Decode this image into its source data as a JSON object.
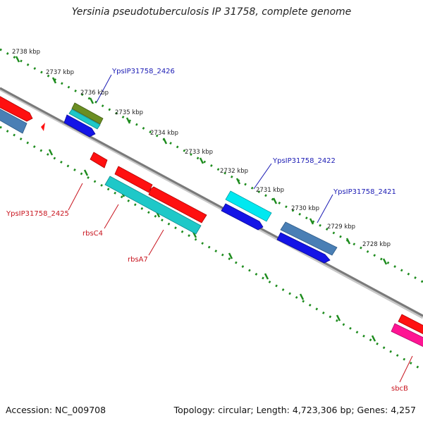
{
  "title": "Yersinia pseudotuberculosis IP 31758, complete genome",
  "accession": "Accession: NC_009708",
  "summary": "Topology: circular; Length: 4,723,306 bp; Genes: 4,257",
  "kbp_labels": {
    "k2738": "2738 kbp",
    "k2737": "2737 kbp",
    "k2736": "2736 kbp",
    "k2735": "2735 kbp",
    "k2734": "2734 kbp",
    "k2733": "2733 kbp",
    "k2732": "2732 kbp",
    "k2731": "2731 kbp",
    "k2730": "2730 kbp",
    "k2729": "2729 kbp",
    "k2728": "2728 kbp"
  },
  "gene_labels": {
    "g2426": "YpsIP31758_2426",
    "g2422": "YpsIP31758_2422",
    "g2421": "YpsIP31758_2421",
    "g2425": "YpsIP31758_2425",
    "rbsC4": "rbsC4",
    "rbsA7": "rbsA7",
    "sbcB": "sbcB"
  },
  "colors": {
    "backbone": "#808080",
    "tick_green": "#1e8c1e",
    "red": "#ff1010",
    "steel_blue": "#4a7fb5",
    "olive": "#6b8e23",
    "cyan": "#1ec8c8",
    "bright_cyan": "#00e8f0",
    "blue": "#1414e6",
    "pink": "#ff1493",
    "label_blue": "#1a1ab4",
    "label_red": "#c8141e"
  }
}
